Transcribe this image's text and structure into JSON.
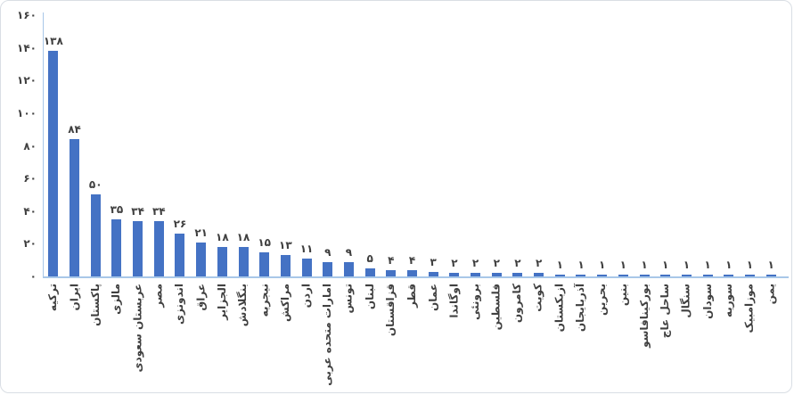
{
  "page": {
    "background": "#ffffff",
    "border_color": "#d9dee4"
  },
  "chart_data": {
    "type": "bar",
    "direction": "rtl",
    "title": "",
    "xlabel": "",
    "ylabel": "",
    "grid": false,
    "legend": false,
    "bar_color": "#4472c4",
    "axis_line_color": "#a8c7e8",
    "text_color": "#404040",
    "categories": [
      "ترکیه",
      "ایران",
      "پاکستان",
      "مالزی",
      "عربستان سعودی",
      "مصر",
      "اندونزی",
      "عراق",
      "الجزایر",
      "بنگلادش",
      "نیجریه",
      "مراکش",
      "اردن",
      "امارات متحده عربی",
      "تونس",
      "لبنان",
      "قزاقستان",
      "قطر",
      "عمان",
      "اوگاندا",
      "برونئی",
      "فلسطین",
      "کامرون",
      "کویت",
      "ازبکستان",
      "آذربایجان",
      "بحرین",
      "بنین",
      "بورکینافاسو",
      "ساحل عاج",
      "سنگال",
      "سودان",
      "سوریه",
      "موزامبیک",
      "یمن"
    ],
    "values": [
      138,
      84,
      50,
      35,
      34,
      34,
      26,
      21,
      18,
      18,
      15,
      13,
      11,
      9,
      9,
      5,
      4,
      4,
      3,
      2,
      2,
      2,
      2,
      2,
      1,
      1,
      1,
      1,
      1,
      1,
      1,
      1,
      1,
      1,
      1
    ],
    "value_labels": [
      "۱۳۸",
      "۸۴",
      "۵۰",
      "۳۵",
      "۳۴",
      "۳۴",
      "۲۶",
      "۲۱",
      "۱۸",
      "۱۸",
      "۱۵",
      "۱۳",
      "۱۱",
      "۹",
      "۹",
      "۵",
      "۴",
      "۴",
      "۳",
      "۲",
      "۲",
      "۲",
      "۲",
      "۲",
      "۱",
      "۱",
      "۱",
      "۱",
      "۱",
      "۱",
      "۱",
      "۱",
      "۱",
      "۱",
      "۱"
    ],
    "y_axis": {
      "min": 0,
      "max": 160,
      "step": 20,
      "tick_values": [
        0,
        20,
        40,
        60,
        80,
        100,
        120,
        140,
        160
      ],
      "tick_labels": [
        "۰",
        "۲۰",
        "۴۰",
        "۶۰",
        "۸۰",
        "۱۰۰",
        "۱۲۰",
        "۱۴۰",
        "۱۶۰"
      ]
    }
  }
}
